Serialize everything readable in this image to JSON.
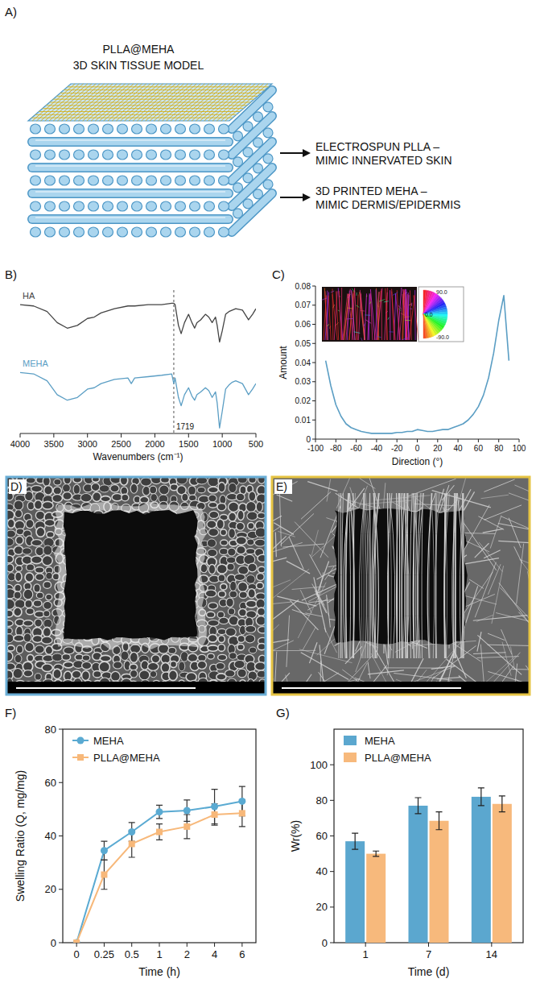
{
  "diagram": {
    "panel_label": "A)",
    "title": [
      "PLLA@MEHA",
      "3D SKIN TISSUE MODEL"
    ],
    "callouts": [
      [
        "ELECTROSPUN PLLA –",
        "MIMIC INNERVATED SKIN"
      ],
      [
        "3D PRINTED MEHA –",
        "MIMIC DERMIS/EPIDERMIS"
      ]
    ]
  },
  "images": [
    {
      "panel_label": "D)"
    },
    {
      "panel_label": "E)"
    }
  ],
  "chart_data": [
    {
      "panel_label": "B)",
      "type": "line",
      "x_label": "Wavenumbers (cm⁻¹)",
      "x": [
        4000,
        3800,
        3600,
        3450,
        3300,
        3150,
        3000,
        2900,
        2800,
        2600,
        2400,
        2350,
        2300,
        2100,
        1900,
        1750,
        1719,
        1700,
        1650,
        1610,
        1560,
        1500,
        1450,
        1410,
        1375,
        1320,
        1250,
        1200,
        1150,
        1100,
        1075,
        1040,
        1000,
        950,
        900,
        850,
        800,
        700,
        610,
        550,
        500
      ],
      "series": [
        {
          "name": "HA",
          "color": "#444444",
          "values": [
            0.93,
            0.92,
            0.88,
            0.8,
            0.76,
            0.78,
            0.83,
            0.84,
            0.87,
            0.9,
            0.92,
            0.92,
            0.92,
            0.93,
            0.93,
            0.94,
            0.94,
            0.93,
            0.78,
            0.72,
            0.8,
            0.86,
            0.8,
            0.76,
            0.8,
            0.82,
            0.86,
            0.84,
            0.8,
            0.84,
            0.78,
            0.66,
            0.74,
            0.86,
            0.88,
            0.89,
            0.9,
            0.89,
            0.82,
            0.86,
            0.9
          ]
        },
        {
          "name": "MEHA",
          "color": "#5b9ec4",
          "values": [
            0.44,
            0.43,
            0.38,
            0.28,
            0.24,
            0.26,
            0.32,
            0.33,
            0.36,
            0.39,
            0.4,
            0.36,
            0.4,
            0.41,
            0.42,
            0.43,
            0.36,
            0.4,
            0.26,
            0.2,
            0.28,
            0.33,
            0.27,
            0.24,
            0.28,
            0.3,
            0.33,
            0.31,
            0.26,
            0.3,
            0.22,
            0.04,
            0.16,
            0.32,
            0.35,
            0.37,
            0.38,
            0.36,
            0.28,
            0.32,
            0.36
          ]
        }
      ],
      "xlim": [
        4000,
        500
      ],
      "xticks": [
        4000,
        3500,
        3000,
        2500,
        2000,
        1500,
        1000,
        500
      ],
      "ylim": [
        0,
        1
      ],
      "tick_labels": "x",
      "annotations": [
        {
          "text": "1719",
          "x": 1719
        }
      ]
    },
    {
      "panel_label": "C)",
      "type": "line",
      "x_label": "Direction (°)",
      "y_label": "Amount",
      "x": [
        -90,
        -85,
        -80,
        -75,
        -70,
        -65,
        -60,
        -55,
        -50,
        -45,
        -40,
        -35,
        -30,
        -25,
        -20,
        -15,
        -10,
        -5,
        0,
        5,
        10,
        15,
        20,
        25,
        30,
        35,
        40,
        45,
        50,
        55,
        60,
        65,
        70,
        75,
        80,
        85,
        90
      ],
      "values": [
        0.041,
        0.028,
        0.018,
        0.012,
        0.008,
        0.006,
        0.005,
        0.004,
        0.0035,
        0.003,
        0.003,
        0.003,
        0.003,
        0.003,
        0.0035,
        0.0035,
        0.004,
        0.004,
        0.005,
        0.0045,
        0.004,
        0.004,
        0.0045,
        0.005,
        0.005,
        0.006,
        0.007,
        0.008,
        0.01,
        0.013,
        0.017,
        0.023,
        0.032,
        0.045,
        0.062,
        0.075,
        0.041
      ],
      "color": "#5b9ec4",
      "xlim": [
        -100,
        100
      ],
      "xticks": [
        -100,
        -80,
        -60,
        -40,
        -20,
        0,
        20,
        40,
        60,
        80,
        100
      ],
      "ylim": [
        0,
        0.08
      ],
      "yticks": [
        0,
        0.01,
        0.02,
        0.03,
        0.04,
        0.05,
        0.06,
        0.07,
        0.08
      ],
      "inset_labels": [
        "90.0",
        "0.0",
        "-90.0"
      ]
    },
    {
      "panel_label": "F)",
      "type": "line",
      "x_label": "Time (h)",
      "y_label": "Swelling Ratio (Q, mg/mg)",
      "categories": [
        "0",
        "0.25",
        "0.5",
        "1",
        "2",
        "4",
        "6"
      ],
      "series": [
        {
          "name": "MEHA",
          "color": "#5aaad2",
          "marker": "circle",
          "values": [
            0,
            34.5,
            41.5,
            49,
            49.5,
            51,
            53
          ],
          "errors": [
            0,
            3.5,
            3.5,
            2.5,
            4,
            6.5,
            5.5
          ]
        },
        {
          "name": "PLLA@MEHA",
          "color": "#f7b87a",
          "marker": "square",
          "values": [
            0,
            25.5,
            37,
            41.5,
            43.5,
            48,
            48.5
          ],
          "errors": [
            0,
            5.5,
            5,
            3,
            4.5,
            4,
            5
          ]
        }
      ],
      "ylim": [
        0,
        80
      ],
      "yticks": [
        0,
        20,
        40,
        60,
        80
      ],
      "legend": "upper left"
    },
    {
      "panel_label": "G)",
      "type": "bar",
      "x_label": "Time (d)",
      "y_label": "Wr(%)",
      "categories": [
        "1",
        "7",
        "14"
      ],
      "series": [
        {
          "name": "MEHA",
          "color": "#5ba7cf",
          "values": [
            57,
            77,
            82
          ],
          "errors": [
            4.5,
            4.5,
            5
          ]
        },
        {
          "name": "PLLA@MEHA",
          "color": "#f7b97c",
          "values": [
            50,
            68.5,
            78
          ],
          "errors": [
            1.5,
            5,
            4.5
          ]
        }
      ],
      "ylim": [
        0,
        120
      ],
      "yticks": [
        0,
        20,
        40,
        60,
        80,
        100
      ],
      "legend": "upper left"
    }
  ]
}
